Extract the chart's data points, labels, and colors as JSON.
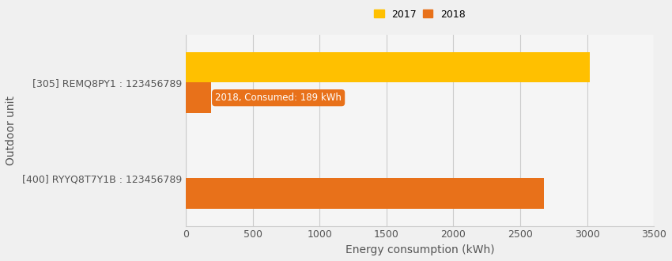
{
  "categories": [
    "[305] REMQ8PY1 : 123456789",
    "[400] RYYQ8T7Y1B : 123456789"
  ],
  "series": [
    {
      "label": "2017",
      "values": [
        3020,
        0
      ],
      "color": "#FFC000"
    },
    {
      "label": "2018",
      "values": [
        189,
        2680
      ],
      "color": "#E8711A"
    }
  ],
  "xlabel": "Energy consumption (kWh)",
  "ylabel": "Outdoor unit",
  "xlim": [
    0,
    3500
  ],
  "xticks": [
    0,
    500,
    1000,
    1500,
    2000,
    2500,
    3000,
    3500
  ],
  "background_color": "#f0f0f0",
  "plot_background": "#f5f5f5",
  "grid_color": "#cccccc",
  "tooltip_text": "2018, Consumed: 189 kWh",
  "tooltip_color": "#E8711A",
  "legend_fontsize": 9,
  "axis_fontsize": 10,
  "tick_fontsize": 9,
  "bar_height": 0.32,
  "bar_gap": 0.33,
  "figwidth": 8.5,
  "figheight": 3.3
}
